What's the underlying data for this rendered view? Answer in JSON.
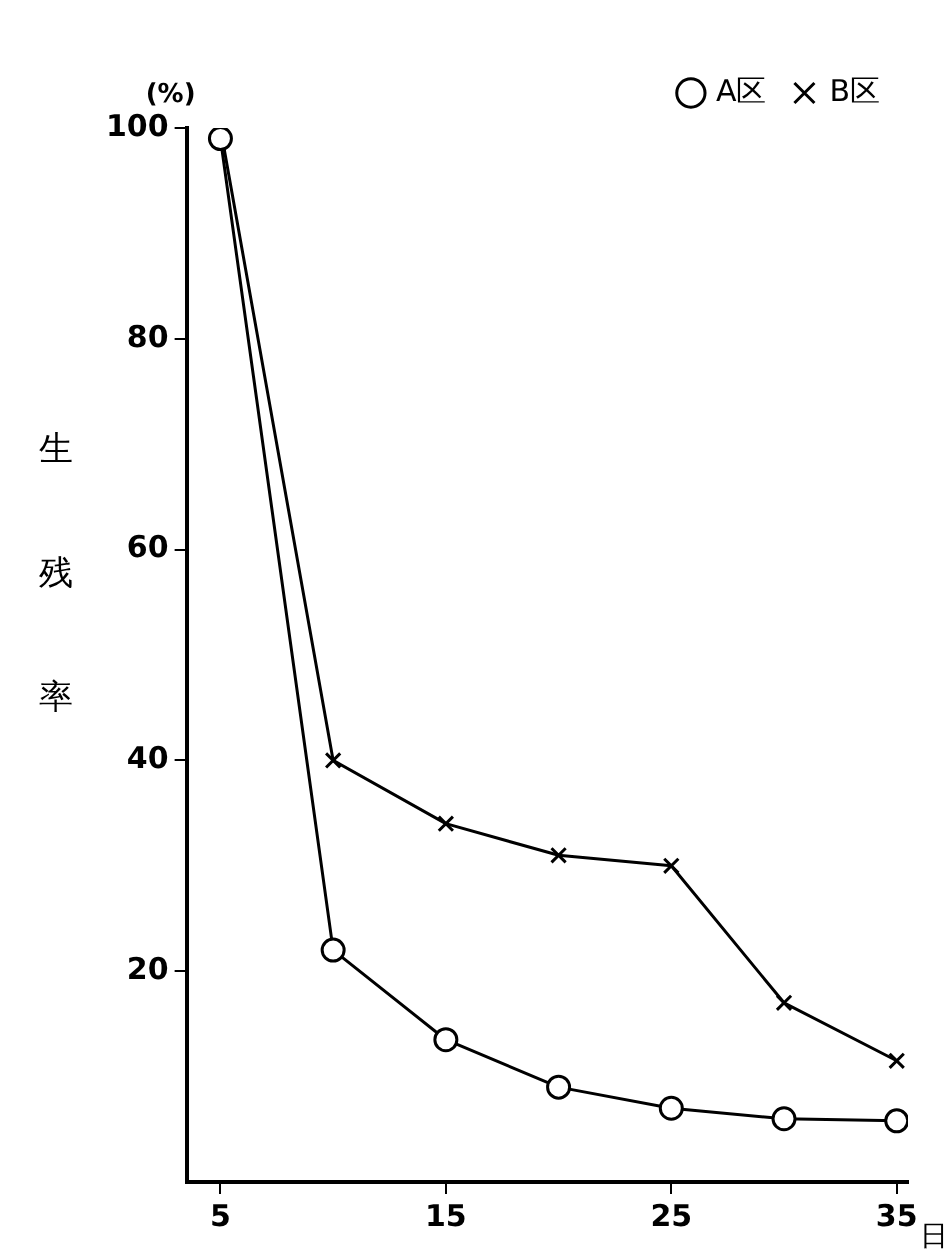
{
  "chart_data": {
    "type": "line",
    "ylabel": "生残率",
    "xlabel": "日",
    "annotations": [
      "(%)"
    ],
    "xlim": [
      3.5,
      35.5
    ],
    "xticks": [
      5,
      15,
      25,
      35
    ],
    "ylim": [
      0,
      100
    ],
    "yticks": [
      20,
      40,
      60,
      80,
      100
    ],
    "grid": false,
    "legend": "top right",
    "line_style": "solid",
    "series": [
      {
        "name": "A区",
        "color": "#000000",
        "marker": "circle",
        "x": [
          5,
          10,
          15,
          20,
          25,
          30,
          35
        ],
        "values": [
          99,
          22,
          13.5,
          9,
          7,
          6,
          5.8
        ]
      },
      {
        "name": "B区",
        "color": "#000000",
        "marker": "cross",
        "x": [
          5,
          10,
          15,
          20,
          25,
          30,
          35
        ],
        "values": [
          100,
          40,
          34,
          31,
          30,
          17,
          11.5
        ]
      }
    ]
  }
}
